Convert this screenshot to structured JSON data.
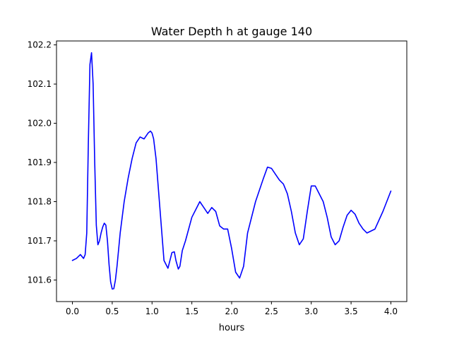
{
  "chart_data": {
    "type": "line",
    "title": "Water Depth h at gauge 140",
    "xlabel": "hours",
    "ylabel": "",
    "xlim": [
      -0.2,
      4.2
    ],
    "ylim": [
      101.545,
      102.21
    ],
    "grid": false,
    "x_ticks": [
      0.0,
      0.5,
      1.0,
      1.5,
      2.0,
      2.5,
      3.0,
      3.5,
      4.0
    ],
    "x_tick_labels": [
      "0.0",
      "0.5",
      "1.0",
      "1.5",
      "2.0",
      "2.5",
      "3.0",
      "3.5",
      "4.0"
    ],
    "y_ticks": [
      101.6,
      101.7,
      101.8,
      101.9,
      102.0,
      102.1,
      102.2
    ],
    "y_tick_labels": [
      "101.6",
      "101.7",
      "101.8",
      "101.9",
      "102.0",
      "102.1",
      "102.2"
    ],
    "series": [
      {
        "color": "#0000ff",
        "x": [
          0.0,
          0.05,
          0.1,
          0.12,
          0.14,
          0.16,
          0.18,
          0.2,
          0.22,
          0.24,
          0.26,
          0.28,
          0.3,
          0.32,
          0.34,
          0.36,
          0.38,
          0.4,
          0.42,
          0.44,
          0.46,
          0.48,
          0.5,
          0.52,
          0.54,
          0.56,
          0.6,
          0.65,
          0.7,
          0.75,
          0.8,
          0.85,
          0.9,
          0.95,
          0.98,
          1.0,
          1.02,
          1.05,
          1.1,
          1.15,
          1.2,
          1.25,
          1.28,
          1.3,
          1.33,
          1.35,
          1.38,
          1.42,
          1.5,
          1.55,
          1.6,
          1.65,
          1.7,
          1.75,
          1.8,
          1.85,
          1.9,
          1.95,
          2.0,
          2.05,
          2.1,
          2.15,
          2.2,
          2.3,
          2.4,
          2.45,
          2.5,
          2.55,
          2.6,
          2.65,
          2.7,
          2.75,
          2.8,
          2.85,
          2.9,
          2.95,
          3.0,
          3.05,
          3.1,
          3.15,
          3.2,
          3.25,
          3.3,
          3.35,
          3.4,
          3.45,
          3.5,
          3.55,
          3.6,
          3.65,
          3.7,
          3.8,
          3.9,
          4.0
        ],
        "y": [
          101.65,
          101.655,
          101.665,
          101.66,
          101.655,
          101.665,
          101.72,
          101.95,
          102.15,
          102.18,
          102.1,
          101.9,
          101.74,
          101.69,
          101.7,
          101.72,
          101.735,
          101.745,
          101.74,
          101.7,
          101.64,
          101.595,
          101.577,
          101.578,
          101.6,
          101.635,
          101.72,
          101.8,
          101.86,
          101.91,
          101.95,
          101.965,
          101.96,
          101.975,
          101.98,
          101.975,
          101.96,
          101.91,
          101.78,
          101.65,
          101.63,
          101.67,
          101.672,
          101.65,
          101.628,
          101.635,
          101.675,
          101.7,
          101.76,
          101.78,
          101.8,
          101.785,
          101.77,
          101.785,
          101.775,
          101.738,
          101.73,
          101.73,
          101.68,
          101.62,
          101.605,
          101.635,
          101.72,
          101.8,
          101.86,
          101.888,
          101.885,
          101.87,
          101.855,
          101.845,
          101.82,
          101.775,
          101.72,
          101.69,
          101.705,
          101.775,
          101.84,
          101.84,
          101.82,
          101.8,
          101.76,
          101.71,
          101.69,
          101.7,
          101.735,
          101.765,
          101.778,
          101.768,
          101.745,
          101.73,
          101.72,
          101.73,
          101.775,
          101.827
        ]
      }
    ]
  }
}
